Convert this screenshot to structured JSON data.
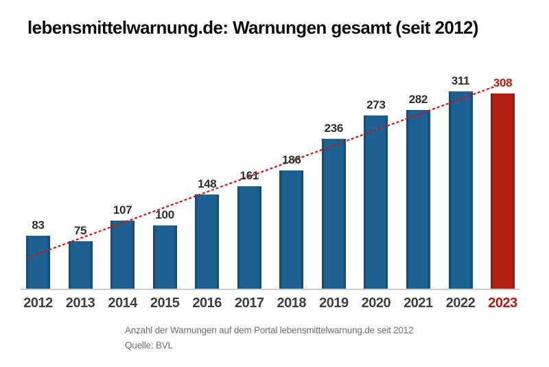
{
  "title": "lebensmittelwarnung.de: Warnungen gesamt (seit 2012)",
  "caption": {
    "line1": "Anzahl der Warnungen auf dem Portal lebensmittelwarnung.de seit 2012",
    "line2": "Quelle: BVL"
  },
  "colors": {
    "bar_blue_mid": "#1d6190",
    "bar_blue_edge": "#13476a",
    "bar_red_mid": "#b22014",
    "bar_red_edge": "#8d170d",
    "trendline": "#d31312",
    "value_label": "#2d2d2d",
    "value_label_highlight": "#b5170b",
    "year_label": "#3e3e3e",
    "year_label_highlight": "#b5170b",
    "baseline": "#cccccc",
    "caption_gray": "#6e6e6e"
  },
  "chart_data": {
    "type": "bar",
    "title": "lebensmittelwarnung.de: Warnungen gesamt (seit 2012)",
    "categories": [
      "2012",
      "2013",
      "2014",
      "2015",
      "2016",
      "2017",
      "2018",
      "2019",
      "2020",
      "2021",
      "2022",
      "2023"
    ],
    "values": [
      83,
      75,
      107,
      100,
      148,
      161,
      186,
      236,
      273,
      282,
      311,
      308
    ],
    "highlight_category": "2023",
    "highlight_index": 11,
    "trendline": "linear-regression",
    "trendline_style": "dashed-red",
    "value_labels_shown": true,
    "ylim": [
      0,
      340
    ],
    "grid": false,
    "legend": false,
    "xlabel": "",
    "ylabel": ""
  }
}
